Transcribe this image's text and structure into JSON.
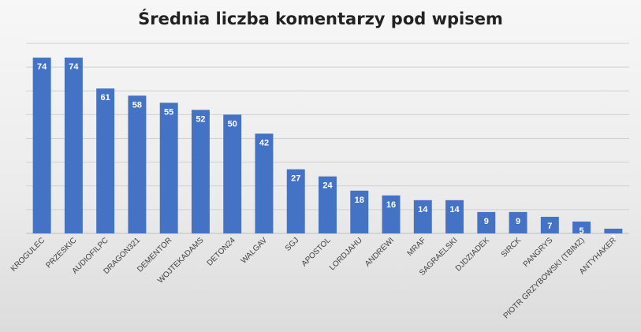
{
  "chart_data": {
    "type": "bar",
    "title": "Średnia liczba komentarzy pod wpisem",
    "xlabel": "",
    "ylabel": "",
    "ylim": [
      0,
      80
    ],
    "grid": true,
    "legend": "none",
    "bar_color": "#4472c4",
    "categories": [
      "KROGULEC",
      "PRZESKIC",
      "AUDIOFILPC",
      "DRAGON321",
      "DEMENTOR",
      "WOJTEKADAMS",
      "DETON24",
      "WALGAV",
      "SGJ",
      "APOSTOL",
      "LORDJAHU",
      "ANDREWI",
      "MRAF",
      "SAGRAELSKI",
      "DJDZIADEK",
      "SIRCK",
      "PANGRYS",
      "PIOTR GRZYBOWSKI (TBIMZ)",
      "ANTYHAKER"
    ],
    "values": [
      74,
      74,
      61,
      58,
      55,
      52,
      50,
      42,
      27,
      24,
      18,
      16,
      14,
      14,
      9,
      9,
      7,
      5,
      2
    ]
  }
}
